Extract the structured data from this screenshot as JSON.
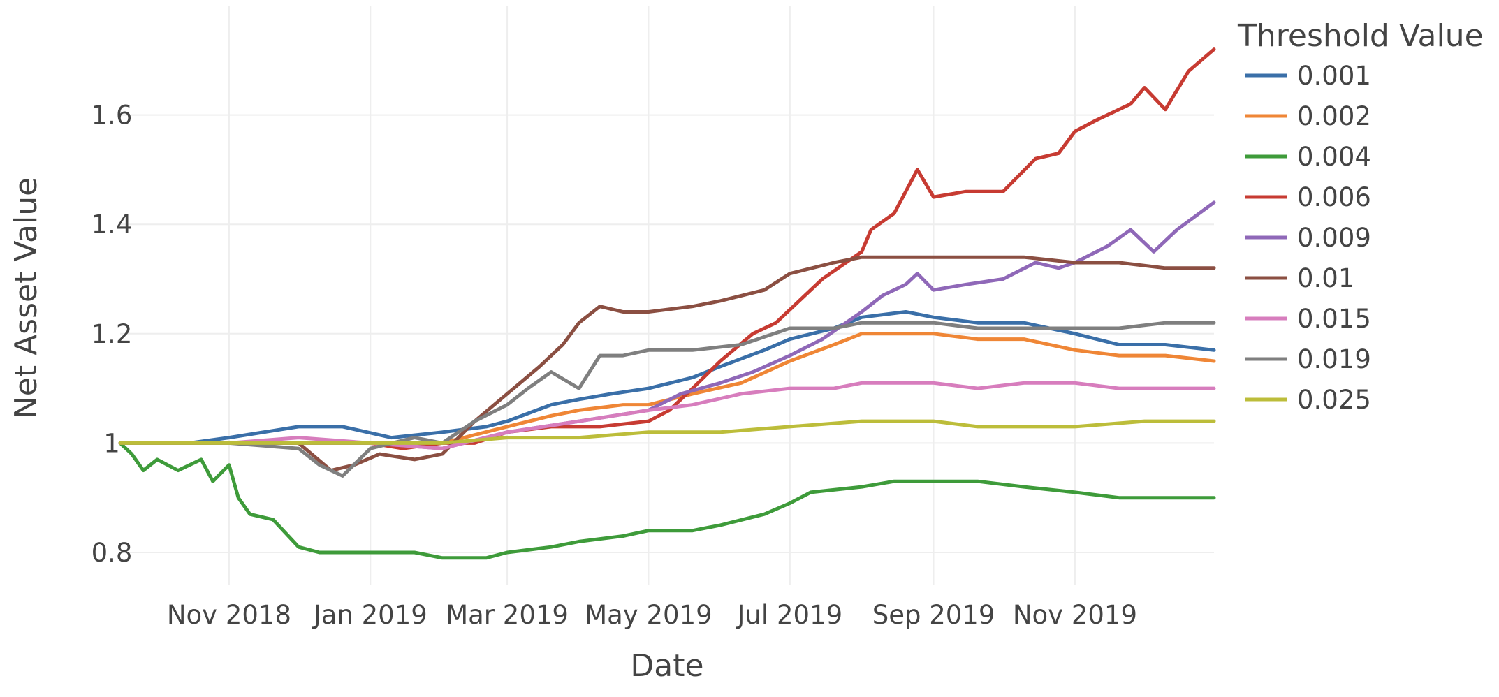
{
  "chart_data": {
    "type": "line",
    "xlabel": "Date",
    "ylabel": "Net Asset Value",
    "x_range": [
      "2018-09-15",
      "2019-12-31"
    ],
    "ylim": [
      0.74,
      1.8
    ],
    "x_ticks": [
      {
        "date": "2018-11-01",
        "label": "Nov 2018"
      },
      {
        "date": "2019-01-01",
        "label": "Jan 2019"
      },
      {
        "date": "2019-03-01",
        "label": "Mar 2019"
      },
      {
        "date": "2019-05-01",
        "label": "May 2019"
      },
      {
        "date": "2019-07-01",
        "label": "Jul 2019"
      },
      {
        "date": "2019-09-01",
        "label": "Sep 2019"
      },
      {
        "date": "2019-11-01",
        "label": "Nov 2019"
      }
    ],
    "y_ticks": [
      {
        "value": 0.8,
        "label": "0.8"
      },
      {
        "value": 1.0,
        "label": "1"
      },
      {
        "value": 1.2,
        "label": "1.2"
      },
      {
        "value": 1.4,
        "label": "1.4"
      },
      {
        "value": 1.6,
        "label": "1.6"
      }
    ],
    "grid": true,
    "legend": {
      "title": "Threshold Value",
      "position": "top-right"
    },
    "series": [
      {
        "name": "0.001",
        "color": "#3a6fa8",
        "points": [
          [
            "2018-09-15",
            1.0
          ],
          [
            "2018-10-15",
            1.0
          ],
          [
            "2018-11-01",
            1.01
          ],
          [
            "2018-12-01",
            1.03
          ],
          [
            "2018-12-20",
            1.03
          ],
          [
            "2019-01-10",
            1.01
          ],
          [
            "2019-02-01",
            1.02
          ],
          [
            "2019-02-20",
            1.03
          ],
          [
            "2019-03-01",
            1.04
          ],
          [
            "2019-03-20",
            1.07
          ],
          [
            "2019-04-01",
            1.08
          ],
          [
            "2019-04-15",
            1.09
          ],
          [
            "2019-05-01",
            1.1
          ],
          [
            "2019-05-20",
            1.12
          ],
          [
            "2019-06-01",
            1.14
          ],
          [
            "2019-06-20",
            1.17
          ],
          [
            "2019-07-01",
            1.19
          ],
          [
            "2019-07-20",
            1.21
          ],
          [
            "2019-08-01",
            1.23
          ],
          [
            "2019-08-20",
            1.24
          ],
          [
            "2019-09-01",
            1.23
          ],
          [
            "2019-09-20",
            1.22
          ],
          [
            "2019-10-10",
            1.22
          ],
          [
            "2019-11-01",
            1.2
          ],
          [
            "2019-11-20",
            1.18
          ],
          [
            "2019-12-10",
            1.18
          ],
          [
            "2019-12-31",
            1.17
          ]
        ]
      },
      {
        "name": "0.002",
        "color": "#ef8636",
        "points": [
          [
            "2018-09-15",
            1.0
          ],
          [
            "2018-11-01",
            1.0
          ],
          [
            "2018-12-01",
            1.0
          ],
          [
            "2019-01-01",
            1.0
          ],
          [
            "2019-02-01",
            1.0
          ],
          [
            "2019-03-01",
            1.03
          ],
          [
            "2019-03-20",
            1.05
          ],
          [
            "2019-04-01",
            1.06
          ],
          [
            "2019-04-20",
            1.07
          ],
          [
            "2019-05-01",
            1.07
          ],
          [
            "2019-05-20",
            1.09
          ],
          [
            "2019-06-10",
            1.11
          ],
          [
            "2019-07-01",
            1.15
          ],
          [
            "2019-07-20",
            1.18
          ],
          [
            "2019-08-01",
            1.2
          ],
          [
            "2019-08-20",
            1.2
          ],
          [
            "2019-09-01",
            1.2
          ],
          [
            "2019-09-20",
            1.19
          ],
          [
            "2019-10-10",
            1.19
          ],
          [
            "2019-11-01",
            1.17
          ],
          [
            "2019-11-20",
            1.16
          ],
          [
            "2019-12-10",
            1.16
          ],
          [
            "2019-12-31",
            1.15
          ]
        ]
      },
      {
        "name": "0.004",
        "color": "#3e9b3a",
        "points": [
          [
            "2018-09-15",
            1.0
          ],
          [
            "2018-09-20",
            0.98
          ],
          [
            "2018-09-25",
            0.95
          ],
          [
            "2018-10-01",
            0.97
          ],
          [
            "2018-10-10",
            0.95
          ],
          [
            "2018-10-20",
            0.97
          ],
          [
            "2018-10-25",
            0.93
          ],
          [
            "2018-11-01",
            0.96
          ],
          [
            "2018-11-05",
            0.9
          ],
          [
            "2018-11-10",
            0.87
          ],
          [
            "2018-11-20",
            0.86
          ],
          [
            "2018-12-01",
            0.81
          ],
          [
            "2018-12-10",
            0.8
          ],
          [
            "2019-01-01",
            0.8
          ],
          [
            "2019-01-20",
            0.8
          ],
          [
            "2019-02-01",
            0.79
          ],
          [
            "2019-02-20",
            0.79
          ],
          [
            "2019-03-01",
            0.8
          ],
          [
            "2019-03-20",
            0.81
          ],
          [
            "2019-04-01",
            0.82
          ],
          [
            "2019-04-20",
            0.83
          ],
          [
            "2019-05-01",
            0.84
          ],
          [
            "2019-05-20",
            0.84
          ],
          [
            "2019-06-01",
            0.85
          ],
          [
            "2019-06-20",
            0.87
          ],
          [
            "2019-07-01",
            0.89
          ],
          [
            "2019-07-10",
            0.91
          ],
          [
            "2019-08-01",
            0.92
          ],
          [
            "2019-08-15",
            0.93
          ],
          [
            "2019-09-01",
            0.93
          ],
          [
            "2019-09-20",
            0.93
          ],
          [
            "2019-10-10",
            0.92
          ],
          [
            "2019-11-01",
            0.91
          ],
          [
            "2019-11-20",
            0.9
          ],
          [
            "2019-12-10",
            0.9
          ],
          [
            "2019-12-31",
            0.9
          ]
        ]
      },
      {
        "name": "0.006",
        "color": "#c73b32",
        "points": [
          [
            "2018-09-15",
            1.0
          ],
          [
            "2018-11-01",
            1.0
          ],
          [
            "2018-12-01",
            1.0
          ],
          [
            "2019-01-01",
            1.0
          ],
          [
            "2019-01-15",
            0.99
          ],
          [
            "2019-02-01",
            1.0
          ],
          [
            "2019-02-15",
            1.0
          ],
          [
            "2019-03-01",
            1.02
          ],
          [
            "2019-03-20",
            1.03
          ],
          [
            "2019-04-10",
            1.03
          ],
          [
            "2019-05-01",
            1.04
          ],
          [
            "2019-05-10",
            1.06
          ],
          [
            "2019-05-20",
            1.1
          ],
          [
            "2019-06-01",
            1.15
          ],
          [
            "2019-06-15",
            1.2
          ],
          [
            "2019-06-25",
            1.22
          ],
          [
            "2019-07-05",
            1.26
          ],
          [
            "2019-07-15",
            1.3
          ],
          [
            "2019-08-01",
            1.35
          ],
          [
            "2019-08-05",
            1.39
          ],
          [
            "2019-08-15",
            1.42
          ],
          [
            "2019-08-25",
            1.5
          ],
          [
            "2019-09-01",
            1.45
          ],
          [
            "2019-09-15",
            1.46
          ],
          [
            "2019-10-01",
            1.46
          ],
          [
            "2019-10-15",
            1.52
          ],
          [
            "2019-10-25",
            1.53
          ],
          [
            "2019-11-01",
            1.57
          ],
          [
            "2019-11-10",
            1.59
          ],
          [
            "2019-11-25",
            1.62
          ],
          [
            "2019-12-01",
            1.65
          ],
          [
            "2019-12-10",
            1.61
          ],
          [
            "2019-12-20",
            1.68
          ],
          [
            "2019-12-31",
            1.72
          ]
        ]
      },
      {
        "name": "0.009",
        "color": "#8f68b8",
        "points": [
          [
            "2018-09-15",
            1.0
          ],
          [
            "2018-11-01",
            1.0
          ],
          [
            "2018-12-01",
            1.0
          ],
          [
            "2019-01-01",
            1.0
          ],
          [
            "2019-02-01",
            0.99
          ],
          [
            "2019-03-01",
            1.02
          ],
          [
            "2019-04-01",
            1.04
          ],
          [
            "2019-05-01",
            1.06
          ],
          [
            "2019-05-15",
            1.09
          ],
          [
            "2019-06-01",
            1.11
          ],
          [
            "2019-06-15",
            1.13
          ],
          [
            "2019-07-01",
            1.16
          ],
          [
            "2019-07-15",
            1.19
          ],
          [
            "2019-08-01",
            1.24
          ],
          [
            "2019-08-10",
            1.27
          ],
          [
            "2019-08-20",
            1.29
          ],
          [
            "2019-08-25",
            1.31
          ],
          [
            "2019-09-01",
            1.28
          ],
          [
            "2019-09-15",
            1.29
          ],
          [
            "2019-10-01",
            1.3
          ],
          [
            "2019-10-15",
            1.33
          ],
          [
            "2019-10-25",
            1.32
          ],
          [
            "2019-11-01",
            1.33
          ],
          [
            "2019-11-15",
            1.36
          ],
          [
            "2019-11-25",
            1.39
          ],
          [
            "2019-12-05",
            1.35
          ],
          [
            "2019-12-15",
            1.39
          ],
          [
            "2019-12-31",
            1.44
          ]
        ]
      },
      {
        "name": "0.01",
        "color": "#8b4f42",
        "points": [
          [
            "2018-09-15",
            1.0
          ],
          [
            "2018-11-01",
            1.0
          ],
          [
            "2018-12-01",
            1.0
          ],
          [
            "2018-12-15",
            0.95
          ],
          [
            "2018-12-25",
            0.96
          ],
          [
            "2019-01-05",
            0.98
          ],
          [
            "2019-01-20",
            0.97
          ],
          [
            "2019-02-01",
            0.98
          ],
          [
            "2019-02-15",
            1.04
          ],
          [
            "2019-03-01",
            1.09
          ],
          [
            "2019-03-15",
            1.14
          ],
          [
            "2019-03-25",
            1.18
          ],
          [
            "2019-04-01",
            1.22
          ],
          [
            "2019-04-10",
            1.25
          ],
          [
            "2019-04-20",
            1.24
          ],
          [
            "2019-05-01",
            1.24
          ],
          [
            "2019-05-20",
            1.25
          ],
          [
            "2019-06-01",
            1.26
          ],
          [
            "2019-06-20",
            1.28
          ],
          [
            "2019-07-01",
            1.31
          ],
          [
            "2019-07-20",
            1.33
          ],
          [
            "2019-08-01",
            1.34
          ],
          [
            "2019-08-20",
            1.34
          ],
          [
            "2019-09-01",
            1.34
          ],
          [
            "2019-09-20",
            1.34
          ],
          [
            "2019-10-10",
            1.34
          ],
          [
            "2019-11-01",
            1.33
          ],
          [
            "2019-11-20",
            1.33
          ],
          [
            "2019-12-10",
            1.32
          ],
          [
            "2019-12-31",
            1.32
          ]
        ]
      },
      {
        "name": "0.015",
        "color": "#d77dbd",
        "points": [
          [
            "2018-09-15",
            1.0
          ],
          [
            "2018-11-01",
            1.0
          ],
          [
            "2018-12-01",
            1.01
          ],
          [
            "2019-01-01",
            1.0
          ],
          [
            "2019-02-01",
            0.99
          ],
          [
            "2019-03-01",
            1.02
          ],
          [
            "2019-04-01",
            1.04
          ],
          [
            "2019-05-01",
            1.06
          ],
          [
            "2019-05-20",
            1.07
          ],
          [
            "2019-06-10",
            1.09
          ],
          [
            "2019-07-01",
            1.1
          ],
          [
            "2019-07-20",
            1.1
          ],
          [
            "2019-08-01",
            1.11
          ],
          [
            "2019-08-20",
            1.11
          ],
          [
            "2019-09-01",
            1.11
          ],
          [
            "2019-09-20",
            1.1
          ],
          [
            "2019-10-10",
            1.11
          ],
          [
            "2019-11-01",
            1.11
          ],
          [
            "2019-11-20",
            1.1
          ],
          [
            "2019-12-10",
            1.1
          ],
          [
            "2019-12-31",
            1.1
          ]
        ]
      },
      {
        "name": "0.019",
        "color": "#7f7f7f",
        "points": [
          [
            "2018-09-15",
            1.0
          ],
          [
            "2018-11-01",
            1.0
          ],
          [
            "2018-12-01",
            0.99
          ],
          [
            "2018-12-10",
            0.96
          ],
          [
            "2018-12-20",
            0.94
          ],
          [
            "2019-01-01",
            0.99
          ],
          [
            "2019-01-20",
            1.01
          ],
          [
            "2019-02-01",
            1.0
          ],
          [
            "2019-02-15",
            1.04
          ],
          [
            "2019-03-01",
            1.07
          ],
          [
            "2019-03-10",
            1.1
          ],
          [
            "2019-03-20",
            1.13
          ],
          [
            "2019-04-01",
            1.1
          ],
          [
            "2019-04-10",
            1.16
          ],
          [
            "2019-04-20",
            1.16
          ],
          [
            "2019-05-01",
            1.17
          ],
          [
            "2019-05-20",
            1.17
          ],
          [
            "2019-06-10",
            1.18
          ],
          [
            "2019-07-01",
            1.21
          ],
          [
            "2019-07-20",
            1.21
          ],
          [
            "2019-08-01",
            1.22
          ],
          [
            "2019-08-20",
            1.22
          ],
          [
            "2019-09-01",
            1.22
          ],
          [
            "2019-09-20",
            1.21
          ],
          [
            "2019-10-10",
            1.21
          ],
          [
            "2019-11-01",
            1.21
          ],
          [
            "2019-11-20",
            1.21
          ],
          [
            "2019-12-10",
            1.22
          ],
          [
            "2019-12-31",
            1.22
          ]
        ]
      },
      {
        "name": "0.025",
        "color": "#bcbd3a",
        "points": [
          [
            "2018-09-15",
            1.0
          ],
          [
            "2018-11-01",
            1.0
          ],
          [
            "2018-12-01",
            1.0
          ],
          [
            "2019-01-01",
            1.0
          ],
          [
            "2019-02-01",
            1.0
          ],
          [
            "2019-03-01",
            1.01
          ],
          [
            "2019-04-01",
            1.01
          ],
          [
            "2019-05-01",
            1.02
          ],
          [
            "2019-06-01",
            1.02
          ],
          [
            "2019-07-01",
            1.03
          ],
          [
            "2019-08-01",
            1.04
          ],
          [
            "2019-09-01",
            1.04
          ],
          [
            "2019-09-20",
            1.03
          ],
          [
            "2019-10-10",
            1.03
          ],
          [
            "2019-11-01",
            1.03
          ],
          [
            "2019-12-01",
            1.04
          ],
          [
            "2019-12-31",
            1.04
          ]
        ]
      }
    ]
  }
}
